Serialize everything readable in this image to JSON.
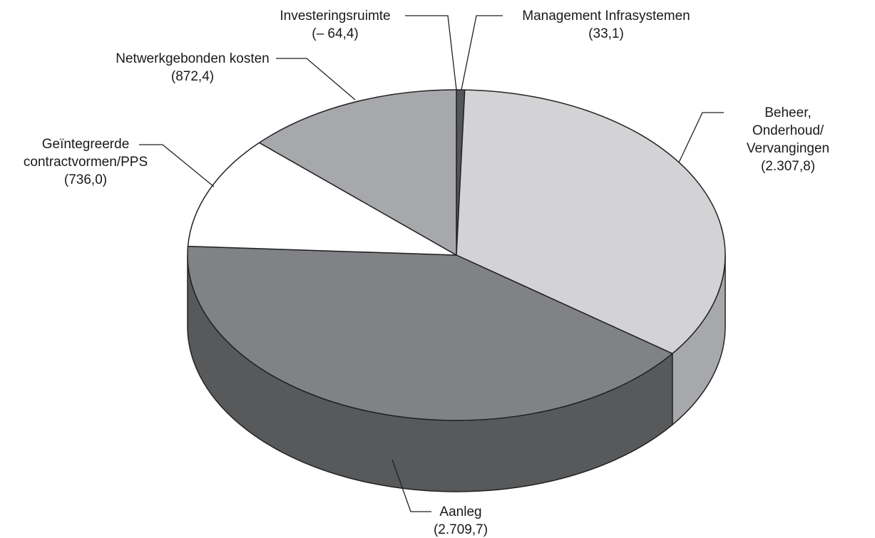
{
  "chart_data": {
    "type": "pie",
    "categories": [
      "Investeringsruimte",
      "Management Infrasystemen",
      "Beheer, Onderhoud/\nVervangingen",
      "Aanleg",
      "Geïntegreerde\ncontractvormen/PPS",
      "Netwerkgebonden kosten"
    ],
    "values": [
      -64.4,
      33.1,
      2307.8,
      2709.7,
      736.0,
      872.4
    ],
    "value_labels": [
      "(– 64,4)",
      "(33,1)",
      "(2.307,8)",
      "(2.709,7)",
      "(736,0)",
      "(872,4)"
    ],
    "colors": [
      "#555658",
      "#555658",
      "#d3d3d5",
      "#808285",
      "#ffffff",
      "#a7a8ab"
    ],
    "side_colors": [
      "#3a3a3c",
      "#3a3a3c",
      "#a7a8ab",
      "#58595b",
      "#e0e0e0",
      "#808285"
    ]
  }
}
